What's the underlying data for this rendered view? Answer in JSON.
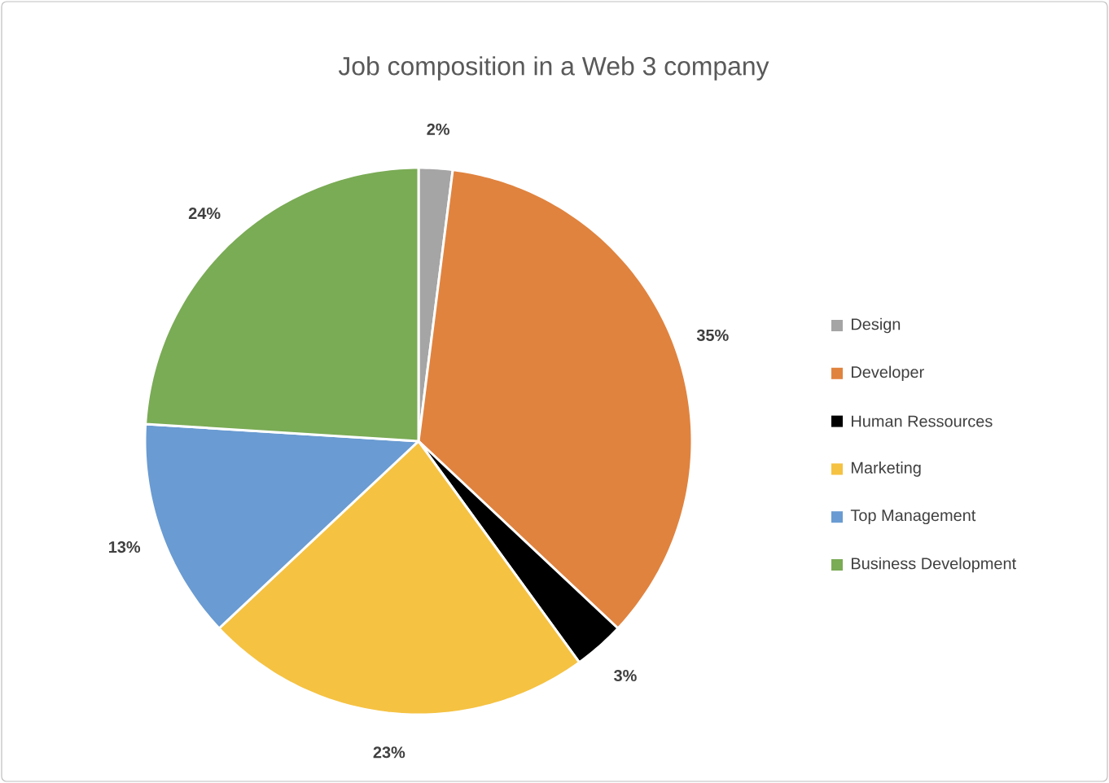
{
  "chart_data": {
    "type": "pie",
    "title": "Job composition in a Web 3 company",
    "categories": [
      "Design",
      "Developer",
      "Human Ressources",
      "Marketing",
      "Top Management",
      "Business Development"
    ],
    "values": [
      2,
      35,
      3,
      23,
      13,
      24
    ],
    "value_labels": [
      "2%",
      "35%",
      "3%",
      "23%",
      "13%",
      "24%"
    ],
    "colors": [
      "#a5a5a5",
      "#e0833f",
      "#000000",
      "#f5c242",
      "#6a9bd2",
      "#7aab55"
    ],
    "legend": "right"
  }
}
